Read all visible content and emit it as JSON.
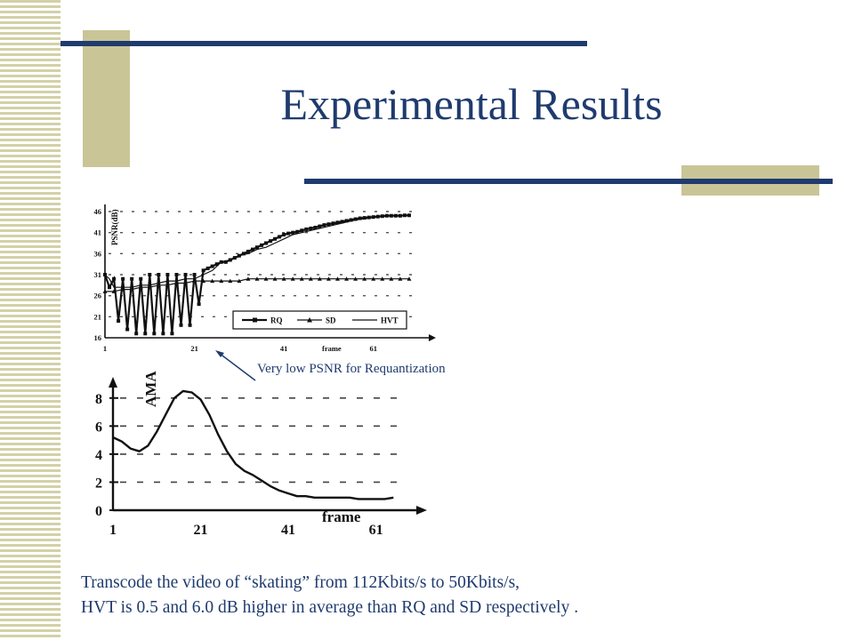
{
  "slide": {
    "title": "Experimental Results",
    "annotation": "Very low PSNR for Requantization",
    "caption_line1": "Transcode the video of “skating” from 112Kbits/s to 50Kbits/s,",
    "caption_line2": "HVT is 0.5 and 6.0 dB higher in average than RQ and SD respectively ."
  },
  "colors": {
    "accent": "#1f3b6e",
    "deco": "#c9c597",
    "stripe": "#d4d0a6",
    "ink": "#111111"
  },
  "chart_data": [
    {
      "type": "line",
      "ylabel": "PSNR(dB)",
      "xlabel": "frame",
      "yticks": [
        16,
        21,
        26,
        31,
        36,
        41,
        46
      ],
      "xticks": [
        1,
        21,
        41,
        61
      ],
      "xlim": [
        1,
        71
      ],
      "ylim": [
        16,
        46
      ],
      "grid": true,
      "legend": "inside-lower-right",
      "series": [
        {
          "name": "RQ",
          "x": [
            1,
            2,
            3,
            4,
            5,
            6,
            7,
            8,
            9,
            10,
            11,
            12,
            13,
            14,
            15,
            16,
            17,
            18,
            19,
            20,
            21,
            22,
            23,
            24,
            25,
            26,
            27,
            28,
            29,
            30,
            31,
            32,
            33,
            34,
            35,
            36,
            37,
            38,
            39,
            40,
            41,
            42,
            43,
            44,
            45,
            46,
            47,
            48,
            49,
            50,
            51,
            52,
            53,
            54,
            55,
            56,
            57,
            58,
            59,
            60,
            61,
            62,
            63,
            64,
            65,
            66,
            67,
            68,
            69
          ],
          "values": [
            31,
            28,
            30,
            20,
            30,
            18,
            30,
            17,
            30,
            17,
            31,
            17,
            31,
            17,
            31,
            17,
            31,
            19,
            31,
            19,
            31,
            24,
            32,
            32.5,
            33,
            33.5,
            34,
            34,
            34.5,
            35,
            35.5,
            36,
            36.5,
            37,
            37.5,
            38,
            38.5,
            39,
            39.5,
            40,
            40.5,
            40.8,
            41,
            41.2,
            41.5,
            41.8,
            42,
            42.2,
            42.5,
            42.8,
            43,
            43.2,
            43.4,
            43.6,
            43.8,
            44,
            44.2,
            44.4,
            44.5,
            44.6,
            44.7,
            44.8,
            44.9,
            45,
            45,
            45,
            45,
            45.1,
            45.1
          ]
        },
        {
          "name": "SD",
          "x": [
            1,
            3,
            5,
            7,
            9,
            11,
            13,
            15,
            17,
            19,
            21,
            23,
            25,
            27,
            29,
            31,
            33,
            35,
            37,
            39,
            41,
            43,
            45,
            47,
            49,
            51,
            53,
            55,
            57,
            59,
            61,
            63,
            65,
            67,
            69
          ],
          "values": [
            27,
            27,
            27.5,
            27.5,
            28,
            28,
            28.5,
            28.5,
            29,
            29,
            29.5,
            29.5,
            29.5,
            29.5,
            29.5,
            29.5,
            30,
            30,
            30,
            30,
            30,
            30,
            30,
            30,
            30,
            30,
            30,
            30,
            30,
            30,
            30,
            30,
            30,
            30,
            30
          ]
        },
        {
          "name": "HVT",
          "x": [
            1,
            2,
            3,
            5,
            7,
            9,
            11,
            13,
            15,
            17,
            19,
            21,
            23,
            25,
            27,
            29,
            31,
            33,
            35,
            37,
            39,
            41,
            43,
            45,
            47,
            49,
            51,
            53,
            55,
            57,
            59,
            61,
            63,
            65,
            67,
            69
          ],
          "values": [
            31,
            30,
            28,
            28,
            28,
            28.5,
            28.5,
            29,
            29.5,
            29.5,
            30,
            30,
            31,
            32,
            34,
            34.5,
            35.5,
            36,
            37,
            37.5,
            38.5,
            39.5,
            40.5,
            41,
            41.5,
            42,
            42.5,
            43,
            43.5,
            44,
            44.3,
            44.6,
            44.8,
            45,
            45,
            45.1
          ]
        }
      ]
    },
    {
      "type": "line",
      "ylabel": "AMA",
      "xlabel": "frame",
      "yticks": [
        0,
        2,
        4,
        6,
        8
      ],
      "xticks": [
        1,
        21,
        41,
        61
      ],
      "xlim": [
        1,
        69
      ],
      "ylim": [
        0,
        9
      ],
      "grid": true,
      "series": [
        {
          "name": "",
          "x": [
            1,
            3,
            5,
            7,
            9,
            11,
            13,
            15,
            17,
            19,
            21,
            23,
            25,
            27,
            29,
            31,
            33,
            35,
            37,
            39,
            41,
            43,
            45,
            47,
            49,
            51,
            53,
            55,
            57,
            59,
            61,
            63,
            65
          ],
          "values": [
            5.2,
            4.9,
            4.4,
            4.2,
            4.6,
            5.6,
            6.8,
            8.0,
            8.5,
            8.4,
            7.9,
            6.8,
            5.4,
            4.2,
            3.3,
            2.8,
            2.5,
            2.1,
            1.7,
            1.4,
            1.2,
            1.0,
            1.0,
            0.9,
            0.9,
            0.9,
            0.9,
            0.9,
            0.8,
            0.8,
            0.8,
            0.8,
            0.9
          ]
        }
      ]
    }
  ]
}
